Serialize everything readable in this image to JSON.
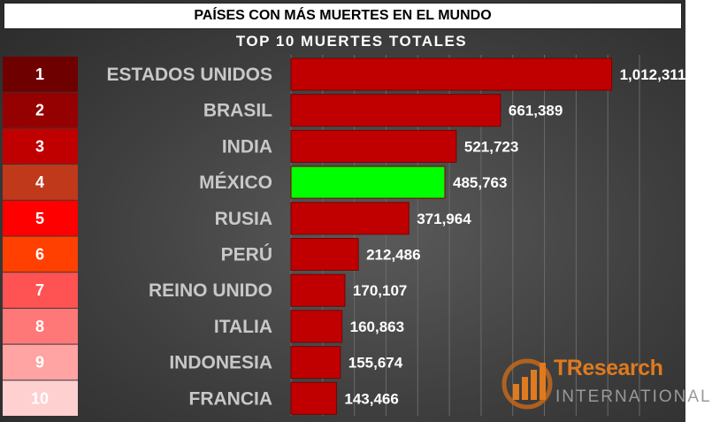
{
  "title": "PAÍSES CON MÁS MUERTES EN EL MUNDO",
  "chart_data": {
    "type": "bar",
    "orientation": "horizontal",
    "title": "TOP 10 MUERTES TOTALES",
    "categories": [
      "ESTADOS UNIDOS",
      "BRASIL",
      "INDIA",
      "MÉXICO",
      "RUSIA",
      "PERÚ",
      "REINO UNIDO",
      "ITALIA",
      "INDONESIA",
      "FRANCIA"
    ],
    "ranks": [
      "1",
      "2",
      "3",
      "4",
      "5",
      "6",
      "7",
      "8",
      "9",
      "10"
    ],
    "values": [
      1012311,
      661389,
      521723,
      485763,
      371964,
      212486,
      170107,
      160863,
      155674,
      143466
    ],
    "value_labels": [
      "1,012,311",
      "661,389",
      "521,723",
      "485,763",
      "371,964",
      "212,486",
      "170,107",
      "160,863",
      "155,674",
      "143,466"
    ],
    "bar_colors": [
      "#c00000",
      "#c00000",
      "#c00000",
      "#00ff00",
      "#c00000",
      "#c00000",
      "#c00000",
      "#c00000",
      "#c00000",
      "#c00000"
    ],
    "rank_colors": [
      "#6e0000",
      "#950000",
      "#c00000",
      "#c0391b",
      "#ff0000",
      "#ff4000",
      "#ff5252",
      "#ff7878",
      "#ffa3a3",
      "#ffd0d0"
    ],
    "xlim": [
      0,
      1100000
    ],
    "grid": true
  },
  "logo": {
    "name": "TResearch",
    "subtitle": "INTERNATIONAL",
    "accent_color": "#e07a1e"
  }
}
